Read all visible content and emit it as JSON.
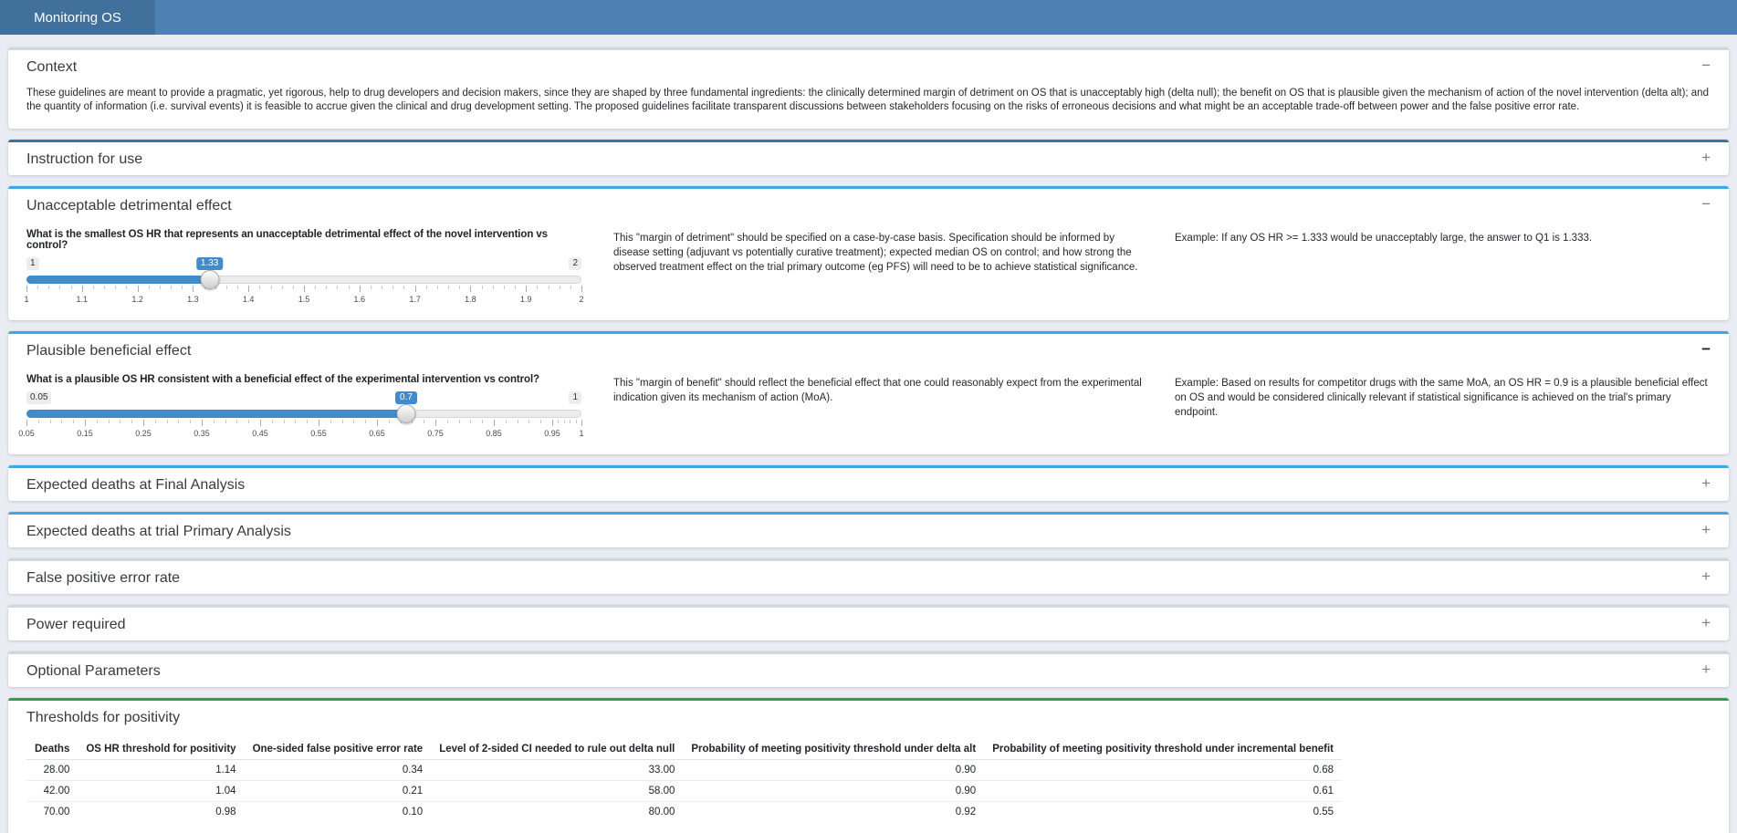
{
  "navbar": {
    "brand": "Monitoring OS"
  },
  "colors": {
    "navbar_bg": "#4d81b3",
    "brand_bg": "#42709d",
    "page_bg": "#e9ecf3",
    "primary_border": "#41719c",
    "info_border": "#3fa7e1",
    "success_border": "#2e9e50",
    "default_border": "#d2d6de",
    "slider_accent": "#428bca"
  },
  "cards": {
    "context": {
      "title": "Context",
      "toggle": "−",
      "body": "These guidelines are meant to provide a pragmatic, yet rigorous, help to drug developers and decision makers, since they are shaped by three fundamental ingredients: the clinically determined margin of detriment on OS that is unacceptably high (delta null); the benefit on OS that is plausible given the mechanism of action of the novel intervention (delta alt); and the quantity of information (i.e. survival events) it is feasible to accrue given the clinical and drug development setting. The proposed guidelines facilitate transparent discussions between stakeholders focusing on the risks of erroneous decisions and what might be an acceptable trade-off between power and the false positive error rate."
    },
    "instruction": {
      "title": "Instruction for use",
      "toggle": "+"
    },
    "unacceptable": {
      "title": "Unacceptable detrimental effect",
      "toggle": "−",
      "question": "What is the smallest OS HR that represents an unacceptable detrimental effect of the novel intervention vs control?",
      "note": "This \"margin of detriment\" should be specified on a case-by-case basis. Specification should be informed by disease setting (adjuvant vs potentially curative treatment); expected median OS on control; and how strong the observed treatment effect on the trial primary outcome (eg PFS) will need to be to achieve statistical significance.",
      "example": "Example: If any OS HR >= 1.333 would be unacceptably large, the answer to Q1 is 1.333.",
      "slider": {
        "min_label": "1",
        "max_label": "2",
        "value_label": "1.33",
        "ticks": [
          "1",
          "1.1",
          "1.2",
          "1.3",
          "1.4",
          "1.5",
          "1.6",
          "1.7",
          "1.8",
          "1.9",
          "2"
        ]
      }
    },
    "plausible": {
      "title": "Plausible beneficial effect",
      "toggle": "−",
      "question": "What is a plausible OS HR consistent with a beneficial effect of the experimental intervention vs control?",
      "note": "This \"margin of benefit\" should reflect the beneficial effect that one could reasonably expect from the experimental indication given its mechanism of action (MoA).",
      "example": "Example: Based on results for competitor drugs with the same MoA, an OS HR = 0.9 is a plausible beneficial effect on OS and would be considered clinically relevant if statistical significance is achieved on the trial's primary endpoint.",
      "slider": {
        "min_label": "0.05",
        "max_label": "1",
        "value_label": "0.7",
        "ticks": [
          "0.05",
          "0.15",
          "0.25",
          "0.35",
          "0.45",
          "0.55",
          "0.65",
          "0.75",
          "0.85",
          "0.95",
          "1"
        ]
      }
    },
    "final_analysis": {
      "title": "Expected deaths at Final Analysis",
      "toggle": "+"
    },
    "primary_analysis": {
      "title": "Expected deaths at trial Primary Analysis",
      "toggle": "+"
    },
    "false_positive": {
      "title": "False positive error rate",
      "toggle": "+"
    },
    "power": {
      "title": "Power required",
      "toggle": "+"
    },
    "optional": {
      "title": "Optional Parameters",
      "toggle": "+"
    },
    "thresholds": {
      "title": "Thresholds for positivity",
      "table": {
        "columns": [
          "Deaths",
          "OS HR threshold for positivity",
          "One-sided false positive error rate",
          "Level of 2-sided CI needed to rule out delta null",
          "Probability of meeting positivity threshold under delta alt",
          "Probability of meeting positivity threshold under incremental benefit"
        ],
        "rows": [
          [
            "28.00",
            "1.14",
            "0.34",
            "33.00",
            "0.90",
            "0.68"
          ],
          [
            "42.00",
            "1.04",
            "0.21",
            "58.00",
            "0.90",
            "0.61"
          ],
          [
            "70.00",
            "0.98",
            "0.10",
            "80.00",
            "0.92",
            "0.55"
          ]
        ]
      }
    }
  }
}
